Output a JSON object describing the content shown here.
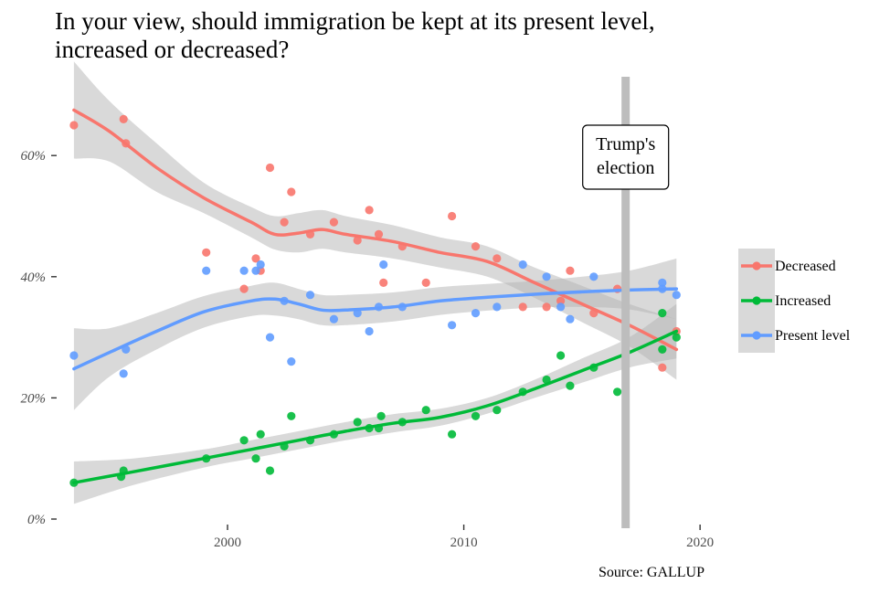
{
  "title_lines": [
    "In your view, should immigration be kept at its present level,",
    "increased or decreased?"
  ],
  "caption": "Source: GALLUP",
  "chart_data": {
    "type": "scatter",
    "title": "In your view, should immigration be kept at its present level, increased or decreased?",
    "xlabel": "",
    "ylabel": "",
    "xlim": [
      1993,
      2021
    ],
    "ylim": [
      0,
      0.73
    ],
    "x_ticks": [
      2000,
      2010,
      2020
    ],
    "x_tick_labels": [
      "2000",
      "2010",
      "2020"
    ],
    "y_ticks": [
      0,
      0.2,
      0.4,
      0.6
    ],
    "y_tick_labels": [
      "0%",
      "20%",
      "40%",
      "60%"
    ],
    "grid": false,
    "legend_position": "right",
    "smoothing": "loess with confidence band",
    "series": [
      {
        "name": "Decreased",
        "color": "#F8766D",
        "points": [
          [
            1993.5,
            0.65
          ],
          [
            1995.6,
            0.66
          ],
          [
            1995.7,
            0.62
          ],
          [
            1999.1,
            0.44
          ],
          [
            2000.7,
            0.38
          ],
          [
            2001.2,
            0.43
          ],
          [
            2001.4,
            0.41
          ],
          [
            2001.8,
            0.58
          ],
          [
            2002.4,
            0.49
          ],
          [
            2002.7,
            0.54
          ],
          [
            2003.5,
            0.47
          ],
          [
            2004.5,
            0.49
          ],
          [
            2005.5,
            0.46
          ],
          [
            2006.0,
            0.51
          ],
          [
            2006.4,
            0.47
          ],
          [
            2006.6,
            0.39
          ],
          [
            2007.4,
            0.45
          ],
          [
            2008.4,
            0.39
          ],
          [
            2009.5,
            0.5
          ],
          [
            2010.5,
            0.45
          ],
          [
            2011.4,
            0.43
          ],
          [
            2012.5,
            0.35
          ],
          [
            2013.5,
            0.35
          ],
          [
            2014.1,
            0.36
          ],
          [
            2014.5,
            0.41
          ],
          [
            2015.5,
            0.34
          ],
          [
            2016.5,
            0.38
          ],
          [
            2018.4,
            0.25
          ],
          [
            2019.0,
            0.31
          ]
        ],
        "trend": [
          [
            1993.5,
            0.675
          ],
          [
            1995,
            0.64
          ],
          [
            1997,
            0.58
          ],
          [
            1999,
            0.53
          ],
          [
            2001,
            0.49
          ],
          [
            2002,
            0.47
          ],
          [
            2003,
            0.472
          ],
          [
            2004,
            0.478
          ],
          [
            2005,
            0.47
          ],
          [
            2007,
            0.458
          ],
          [
            2009,
            0.44
          ],
          [
            2011,
            0.425
          ],
          [
            2013,
            0.39
          ],
          [
            2015,
            0.355
          ],
          [
            2017,
            0.32
          ],
          [
            2019,
            0.28
          ]
        ],
        "band_upper": [
          [
            1993.5,
            0.755
          ],
          [
            1995,
            0.69
          ],
          [
            1997,
            0.62
          ],
          [
            1999,
            0.555
          ],
          [
            2001,
            0.515
          ],
          [
            2002,
            0.5
          ],
          [
            2003,
            0.505
          ],
          [
            2004,
            0.51
          ],
          [
            2005,
            0.5
          ],
          [
            2007,
            0.485
          ],
          [
            2009,
            0.465
          ],
          [
            2011,
            0.45
          ],
          [
            2013,
            0.415
          ],
          [
            2015,
            0.385
          ],
          [
            2017,
            0.355
          ],
          [
            2019,
            0.33
          ]
        ],
        "band_lower": [
          [
            1993.5,
            0.595
          ],
          [
            1995,
            0.59
          ],
          [
            1997,
            0.54
          ],
          [
            1999,
            0.505
          ],
          [
            2001,
            0.465
          ],
          [
            2002,
            0.445
          ],
          [
            2003,
            0.44
          ],
          [
            2004,
            0.446
          ],
          [
            2005,
            0.44
          ],
          [
            2007,
            0.43
          ],
          [
            2009,
            0.415
          ],
          [
            2011,
            0.4
          ],
          [
            2013,
            0.365
          ],
          [
            2015,
            0.325
          ],
          [
            2017,
            0.285
          ],
          [
            2019,
            0.23
          ]
        ]
      },
      {
        "name": "Increased",
        "color": "#00BA38",
        "points": [
          [
            1993.5,
            0.06
          ],
          [
            1995.5,
            0.07
          ],
          [
            1995.6,
            0.08
          ],
          [
            1999.1,
            0.1
          ],
          [
            2000.7,
            0.13
          ],
          [
            2001.2,
            0.1
          ],
          [
            2001.4,
            0.14
          ],
          [
            2001.8,
            0.08
          ],
          [
            2002.4,
            0.12
          ],
          [
            2002.7,
            0.17
          ],
          [
            2003.5,
            0.13
          ],
          [
            2004.5,
            0.14
          ],
          [
            2005.5,
            0.16
          ],
          [
            2006.0,
            0.15
          ],
          [
            2006.4,
            0.15
          ],
          [
            2006.5,
            0.17
          ],
          [
            2007.4,
            0.16
          ],
          [
            2008.4,
            0.18
          ],
          [
            2009.5,
            0.14
          ],
          [
            2010.5,
            0.17
          ],
          [
            2011.4,
            0.18
          ],
          [
            2012.5,
            0.21
          ],
          [
            2013.5,
            0.23
          ],
          [
            2014.1,
            0.27
          ],
          [
            2014.5,
            0.22
          ],
          [
            2015.5,
            0.25
          ],
          [
            2016.5,
            0.21
          ],
          [
            2018.4,
            0.28
          ],
          [
            2018.4,
            0.34
          ],
          [
            2019.0,
            0.3
          ]
        ],
        "trend": [
          [
            1993.5,
            0.06
          ],
          [
            1996,
            0.078
          ],
          [
            1999,
            0.1
          ],
          [
            2001,
            0.115
          ],
          [
            2003,
            0.13
          ],
          [
            2005,
            0.145
          ],
          [
            2007,
            0.158
          ],
          [
            2009,
            0.168
          ],
          [
            2011,
            0.187
          ],
          [
            2013,
            0.215
          ],
          [
            2015,
            0.245
          ],
          [
            2017,
            0.275
          ],
          [
            2019,
            0.31
          ]
        ],
        "band_upper": [
          [
            1993.5,
            0.095
          ],
          [
            1996,
            0.1
          ],
          [
            1999,
            0.115
          ],
          [
            2001,
            0.13
          ],
          [
            2003,
            0.145
          ],
          [
            2005,
            0.16
          ],
          [
            2007,
            0.173
          ],
          [
            2009,
            0.182
          ],
          [
            2011,
            0.2
          ],
          [
            2013,
            0.23
          ],
          [
            2015,
            0.265
          ],
          [
            2017,
            0.3
          ],
          [
            2019,
            0.355
          ]
        ],
        "band_lower": [
          [
            1993.5,
            0.025
          ],
          [
            1996,
            0.056
          ],
          [
            1999,
            0.085
          ],
          [
            2001,
            0.1
          ],
          [
            2003,
            0.115
          ],
          [
            2005,
            0.13
          ],
          [
            2007,
            0.143
          ],
          [
            2009,
            0.154
          ],
          [
            2011,
            0.174
          ],
          [
            2013,
            0.2
          ],
          [
            2015,
            0.225
          ],
          [
            2017,
            0.25
          ],
          [
            2019,
            0.265
          ]
        ]
      },
      {
        "name": "Present level",
        "color": "#619CFF",
        "points": [
          [
            1993.5,
            0.27
          ],
          [
            1995.6,
            0.24
          ],
          [
            1995.7,
            0.28
          ],
          [
            1999.1,
            0.41
          ],
          [
            2000.7,
            0.41
          ],
          [
            2001.2,
            0.41
          ],
          [
            2001.4,
            0.42
          ],
          [
            2001.8,
            0.3
          ],
          [
            2002.4,
            0.36
          ],
          [
            2002.7,
            0.26
          ],
          [
            2003.5,
            0.37
          ],
          [
            2004.5,
            0.33
          ],
          [
            2005.5,
            0.34
          ],
          [
            2006.0,
            0.31
          ],
          [
            2006.4,
            0.35
          ],
          [
            2006.6,
            0.42
          ],
          [
            2007.4,
            0.35
          ],
          [
            2009.5,
            0.32
          ],
          [
            2010.5,
            0.34
          ],
          [
            2011.4,
            0.35
          ],
          [
            2012.5,
            0.42
          ],
          [
            2013.5,
            0.4
          ],
          [
            2014.1,
            0.35
          ],
          [
            2014.5,
            0.33
          ],
          [
            2015.5,
            0.4
          ],
          [
            2018.4,
            0.38
          ],
          [
            2018.4,
            0.39
          ],
          [
            2019.0,
            0.37
          ]
        ],
        "trend": [
          [
            1993.5,
            0.248
          ],
          [
            1995,
            0.275
          ],
          [
            1997,
            0.31
          ],
          [
            1999,
            0.342
          ],
          [
            2001,
            0.36
          ],
          [
            2002,
            0.363
          ],
          [
            2003,
            0.355
          ],
          [
            2004,
            0.345
          ],
          [
            2005,
            0.345
          ],
          [
            2007,
            0.35
          ],
          [
            2009,
            0.36
          ],
          [
            2011,
            0.366
          ],
          [
            2013,
            0.371
          ],
          [
            2015,
            0.375
          ],
          [
            2017,
            0.378
          ],
          [
            2019,
            0.38
          ]
        ],
        "band_upper": [
          [
            1993.5,
            0.315
          ],
          [
            1995,
            0.315
          ],
          [
            1997,
            0.34
          ],
          [
            1999,
            0.368
          ],
          [
            2001,
            0.385
          ],
          [
            2002,
            0.39
          ],
          [
            2003,
            0.38
          ],
          [
            2004,
            0.37
          ],
          [
            2005,
            0.37
          ],
          [
            2007,
            0.374
          ],
          [
            2009,
            0.383
          ],
          [
            2011,
            0.388
          ],
          [
            2013,
            0.393
          ],
          [
            2015,
            0.4
          ],
          [
            2017,
            0.41
          ],
          [
            2019,
            0.43
          ]
        ],
        "band_lower": [
          [
            1993.5,
            0.18
          ],
          [
            1995,
            0.235
          ],
          [
            1997,
            0.28
          ],
          [
            1999,
            0.316
          ],
          [
            2001,
            0.335
          ],
          [
            2002,
            0.336
          ],
          [
            2003,
            0.33
          ],
          [
            2004,
            0.32
          ],
          [
            2005,
            0.32
          ],
          [
            2007,
            0.326
          ],
          [
            2009,
            0.337
          ],
          [
            2011,
            0.344
          ],
          [
            2013,
            0.349
          ],
          [
            2015,
            0.35
          ],
          [
            2017,
            0.346
          ],
          [
            2019,
            0.33
          ]
        ]
      }
    ],
    "annotations": [
      {
        "label_lines": [
          "Trump's",
          "election"
        ],
        "x": 2016.85,
        "type": "vertical-line"
      }
    ]
  }
}
